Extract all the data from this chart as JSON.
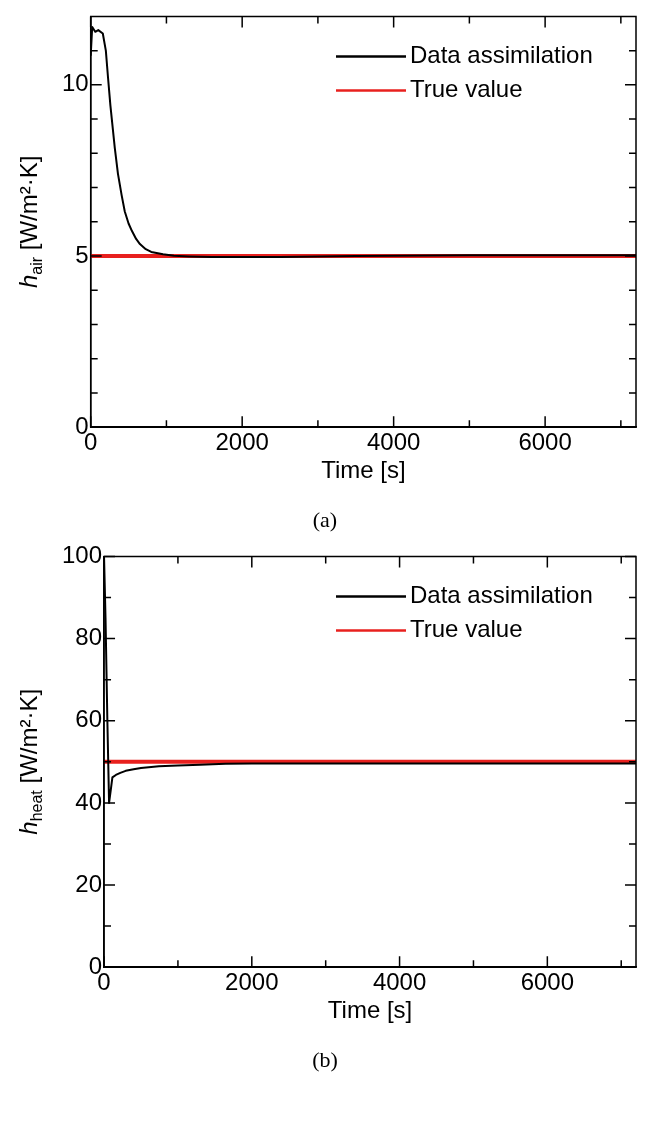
{
  "chart_data": [
    {
      "type": "line",
      "xlabel": "Time [s]",
      "ylabel": "h$_{air}$ [W/m²·K]",
      "annotations": [
        "(a)"
      ],
      "xlim": [
        0,
        7200
      ],
      "ylim": [
        0,
        12
      ],
      "xticks": [
        0,
        {
          "value": 1000,
          "label": null
        },
        2000,
        {
          "value": 3000,
          "label": null
        },
        4000,
        {
          "value": 5000,
          "label": null
        },
        6000,
        {
          "value": 7000,
          "label": null
        }
      ],
      "yticks": [
        0,
        {
          "value": 1,
          "label": null
        },
        {
          "value": 2,
          "label": null
        },
        {
          "value": 3,
          "label": null
        },
        {
          "value": 4,
          "label": null
        },
        5,
        {
          "value": 6,
          "label": null
        },
        {
          "value": 7,
          "label": null
        },
        {
          "value": 8,
          "label": null
        },
        {
          "value": 9,
          "label": null
        },
        10,
        {
          "value": 11,
          "label": null
        }
      ],
      "legend": "top right",
      "grid": false,
      "marker": "none",
      "series": [
        {
          "name": "Data assimilation",
          "color": "#000000",
          "x": [
            0,
            20,
            60,
            100,
            160,
            200,
            227,
            260,
            318,
            360,
            409,
            450,
            500,
            545,
            600,
            650,
            727,
            800,
            955,
            1100,
            1300,
            1600,
            2000,
            2500,
            3000,
            3500,
            4000,
            5000,
            6000,
            7200
          ],
          "values": [
            10.85,
            11.69,
            11.55,
            11.6,
            11.5,
            11.0,
            10.26,
            9.4,
            8.16,
            7.4,
            6.77,
            6.3,
            5.95,
            5.73,
            5.5,
            5.35,
            5.2,
            5.12,
            5.05,
            5.01,
            4.99,
            4.97,
            4.97,
            4.97,
            4.99,
            5.0,
            5.01,
            5.02,
            5.02,
            5.02
          ]
        },
        {
          "name": "True value",
          "color": "#e8201e",
          "x": [
            0,
            7200
          ],
          "values": [
            5,
            5
          ]
        }
      ]
    },
    {
      "type": "line",
      "xlabel": "Time [s]",
      "ylabel": "h$_{heat}$ [W/m²·K]",
      "annotations": [
        "(b)"
      ],
      "xlim": [
        0,
        7200
      ],
      "ylim": [
        0,
        100
      ],
      "xticks": [
        0,
        {
          "value": 1000,
          "label": null
        },
        2000,
        {
          "value": 3000,
          "label": null
        },
        4000,
        {
          "value": 5000,
          "label": null
        },
        6000,
        {
          "value": 7000,
          "label": null
        }
      ],
      "yticks": [
        0,
        {
          "value": 10,
          "label": null
        },
        20,
        {
          "value": 30,
          "label": null
        },
        40,
        {
          "value": 50,
          "label": null
        },
        60,
        {
          "value": 70,
          "label": null
        },
        80,
        {
          "value": 90,
          "label": null
        },
        100
      ],
      "legend": "top right",
      "grid": false,
      "marker": "none",
      "series": [
        {
          "name": "Data assimilation",
          "color": "#000000",
          "x": [
            0,
            20,
            45,
            68,
            90,
            113,
            160,
            220,
            293,
            400,
            500,
            743,
            1000,
            1300,
            1644,
            2000,
            3000,
            4000,
            5000,
            6000,
            7200
          ],
          "values": [
            100,
            85,
            60,
            40,
            43,
            46.2,
            46.8,
            47.3,
            47.8,
            48.2,
            48.5,
            48.9,
            49.1,
            49.3,
            49.5,
            49.6,
            49.6,
            49.6,
            49.6,
            49.6,
            49.6
          ]
        },
        {
          "name": "True value",
          "color": "#e8201e",
          "x": [
            0,
            7200
          ],
          "values": [
            50,
            50
          ]
        }
      ]
    }
  ]
}
